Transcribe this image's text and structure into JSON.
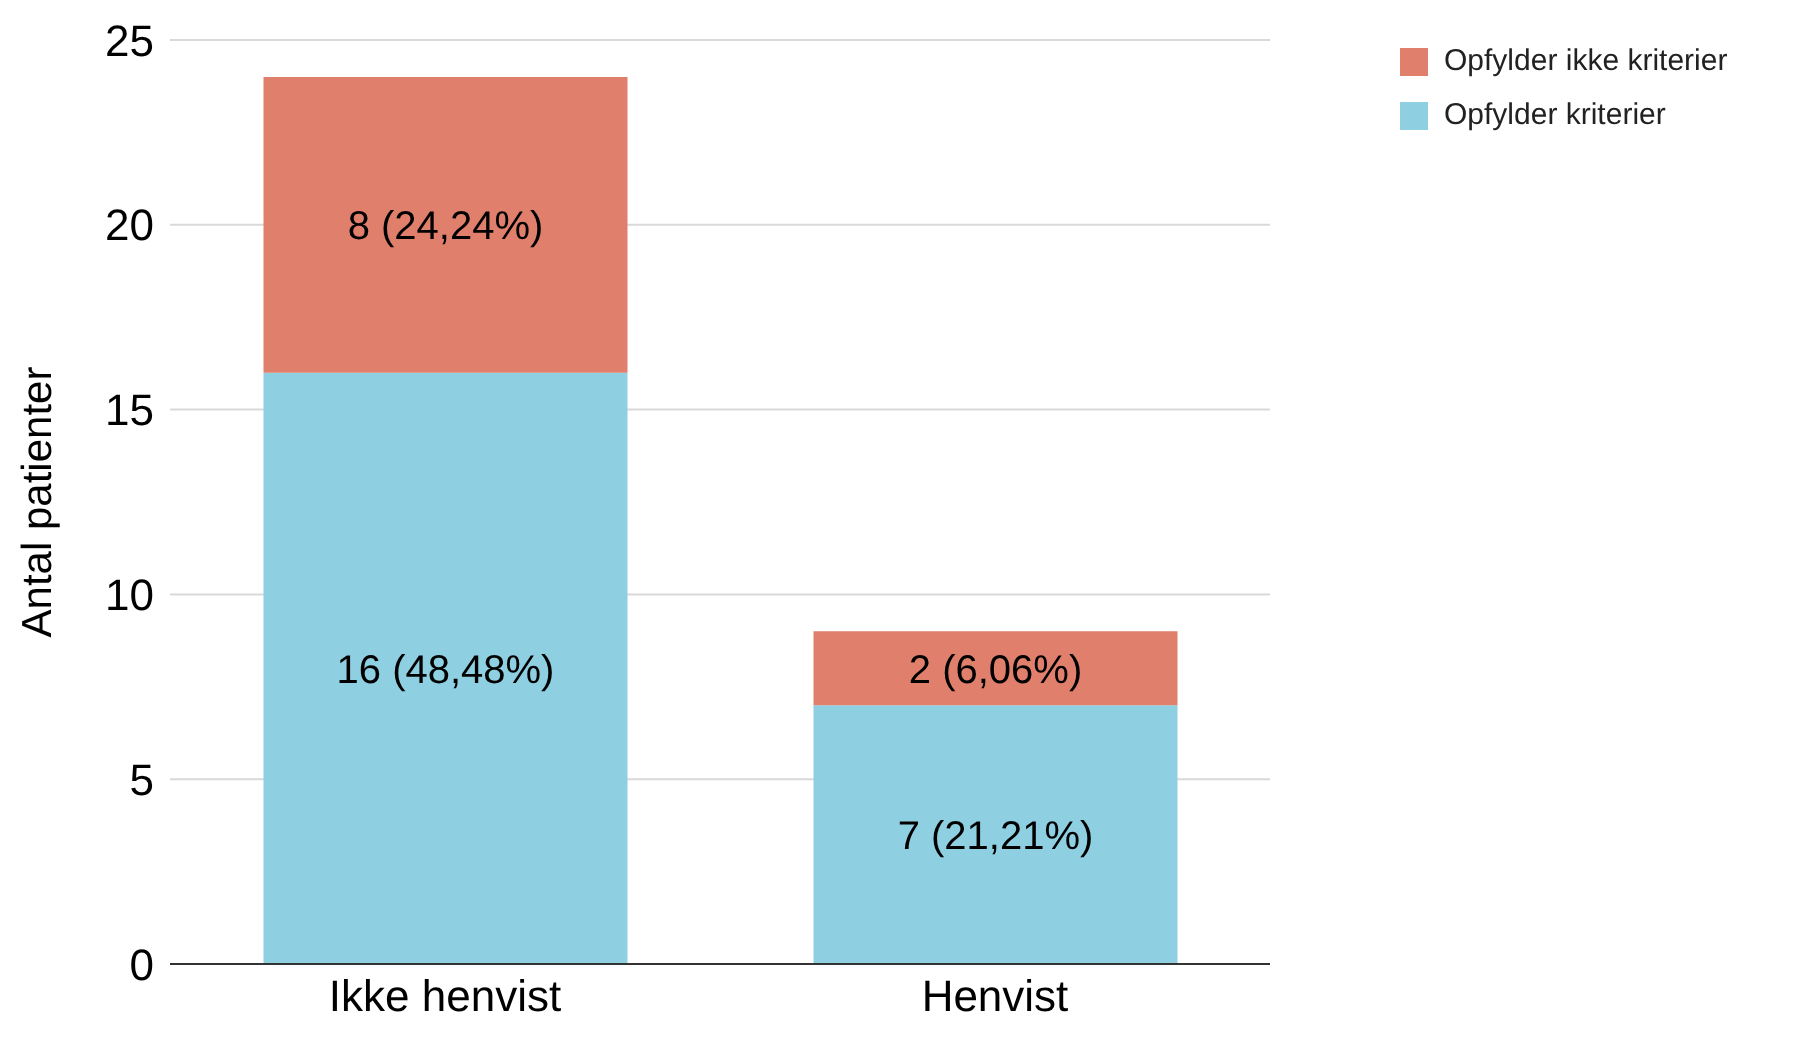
{
  "chart_data": {
    "type": "bar",
    "stacked": true,
    "ylabel": "Antal patienter",
    "categories": [
      "Ikke henvist",
      "Henvist"
    ],
    "series": [
      {
        "name": "Opfylder kriterier",
        "color": "#8ecfe1",
        "values": [
          16,
          7
        ],
        "value_labels": [
          "16 (48,48%)",
          "7 (21,21%)"
        ]
      },
      {
        "name": "Opfylder ikke kriterier",
        "color": "#e07f6b",
        "values": [
          8,
          2
        ],
        "value_labels": [
          "8 (24,24%)",
          "2 (6,06%)"
        ]
      }
    ],
    "ylim": [
      0,
      25
    ],
    "yticks": [
      0,
      5,
      10,
      15,
      20,
      25
    ],
    "grid": "y",
    "legend": "top right"
  }
}
